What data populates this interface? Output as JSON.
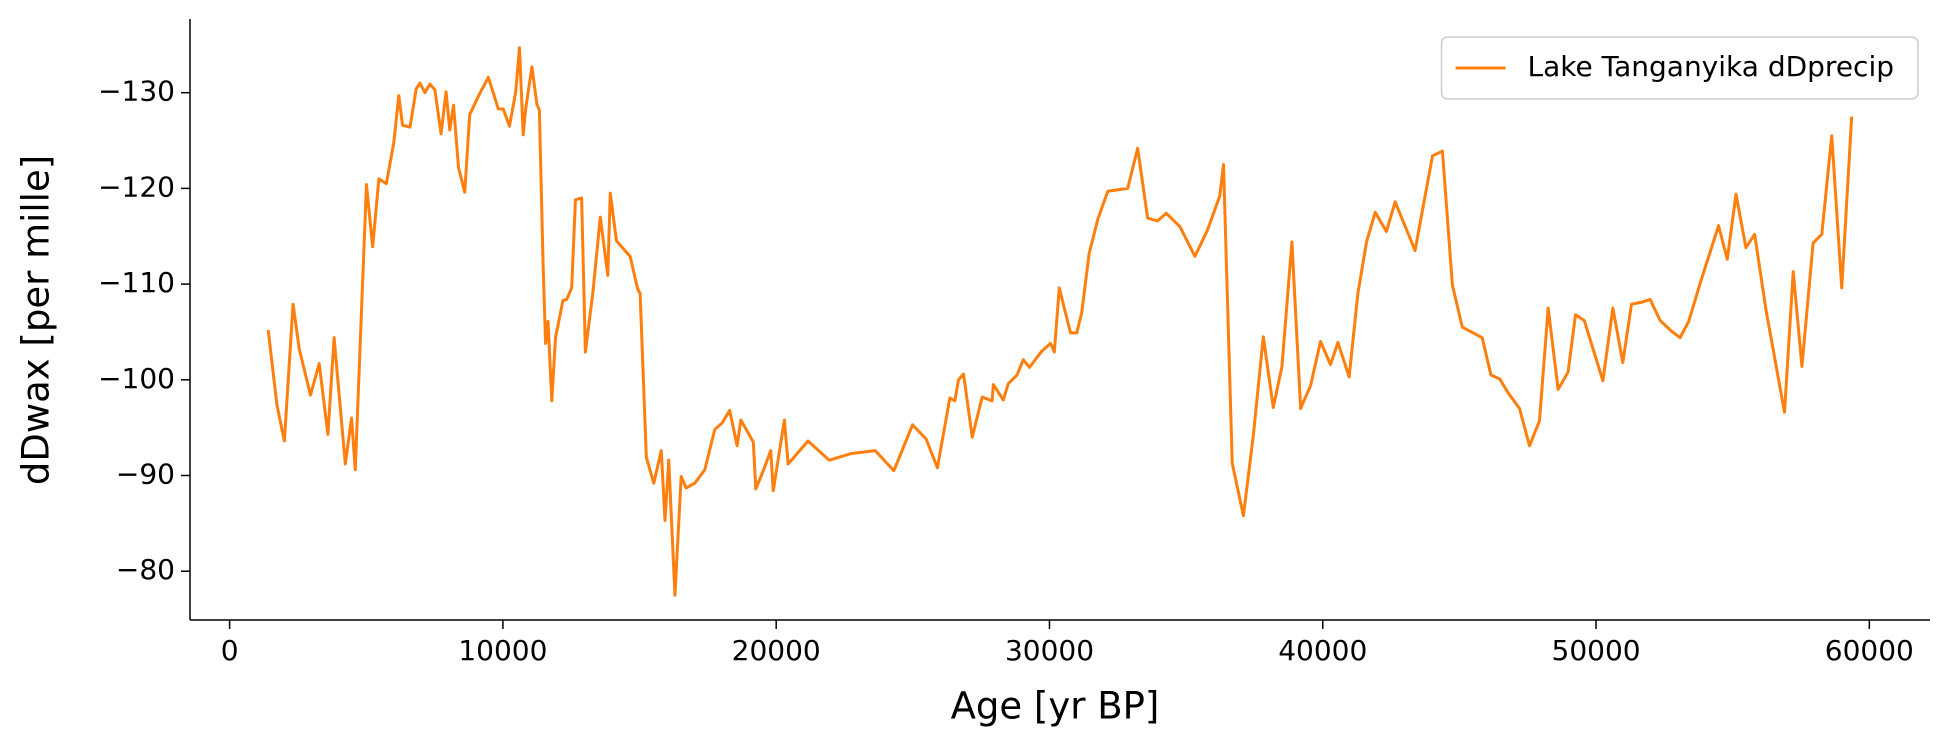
{
  "chart_data": {
    "type": "line",
    "xlabel": "Age [yr BP]",
    "ylabel": "dDwax [per mille]",
    "xlim": [
      -1450,
      62220
    ],
    "ylim": [
      -74.9,
      -137.7
    ],
    "xticks": [
      0,
      10000,
      20000,
      30000,
      40000,
      50000,
      60000
    ],
    "yticks": [
      {
        "value": -130,
        "label": "−130"
      },
      {
        "value": -120,
        "label": "−120"
      },
      {
        "value": -110,
        "label": "−110"
      },
      {
        "value": -100,
        "label": "−100"
      },
      {
        "value": -90,
        "label": "−90"
      },
      {
        "value": -80,
        "label": "−80"
      }
    ],
    "grid": false,
    "legend": "upper right",
    "series": [
      {
        "name": "Lake Tanganyika dDprecip",
        "color": "#ff7f0e",
        "x": [
          1411,
          1730,
          2003,
          2321,
          2549,
          2959,
          3277,
          3596,
          3823,
          4233,
          4461,
          4597,
          5007,
          5234,
          5462,
          5735,
          6008,
          6190,
          6327,
          6600,
          6828,
          6964,
          7146,
          7328,
          7510,
          7738,
          7920,
          8056,
          8193,
          8375,
          8603,
          8785,
          9149,
          9468,
          9832,
          10014,
          10241,
          10469,
          10606,
          10742,
          10833,
          11061,
          11243,
          11334,
          11470,
          11561,
          11652,
          11789,
          11925,
          12198,
          12335,
          12517,
          12654,
          12881,
          13018,
          13291,
          13564,
          13837,
          13928,
          14156,
          14656,
          14930,
          15021,
          15248,
          15521,
          15794,
          15931,
          16068,
          16295,
          16523,
          16705,
          17023,
          17387,
          17752,
          18025,
          18298,
          18571,
          18707,
          19162,
          19254,
          19527,
          19800,
          19891,
          20300,
          20437,
          21165,
          21939,
          22758,
          23623,
          24306,
          24989,
          25489,
          25899,
          26354,
          26536,
          26672,
          26855,
          27173,
          27537,
          27901,
          27947,
          28311,
          28493,
          28812,
          29040,
          29267,
          29722,
          30041,
          30177,
          30359,
          30769,
          30997,
          31179,
          31452,
          31771,
          32135,
          32863,
          33227,
          33591,
          33955,
          34274,
          34775,
          35321,
          35776,
          36231,
          36368,
          36687,
          37096,
          37460,
          37824,
          38189,
          38507,
          38871,
          39190,
          39554,
          39918,
          40282,
          40555,
          40965,
          41284,
          41602,
          41921,
          42330,
          42649,
          43377,
          44015,
          44379,
          44743,
          45107,
          45835,
          46154,
          46473,
          46791,
          47201,
          47565,
          47929,
          48248,
          48612,
          48976,
          49249,
          49568,
          50251,
          50615,
          50979,
          51297,
          51661,
          51980,
          52344,
          52754,
          53073,
          53391,
          53801,
          54483,
          54802,
          55121,
          55485,
          55804,
          56213,
          56896,
          57215,
          57533,
          57943,
          58261,
          58625,
          58990,
          59354
        ],
        "values": [
          -105.2,
          -97.4,
          -93.6,
          -107.9,
          -103.2,
          -98.4,
          -101.7,
          -94.3,
          -104.4,
          -91.2,
          -96.0,
          -90.6,
          -120.4,
          -113.9,
          -121.0,
          -120.5,
          -124.8,
          -129.7,
          -126.6,
          -126.4,
          -130.4,
          -131.0,
          -130.0,
          -130.9,
          -130.3,
          -125.7,
          -130.1,
          -126.1,
          -128.7,
          -122.2,
          -119.6,
          -127.7,
          -129.9,
          -131.6,
          -128.3,
          -128.3,
          -126.5,
          -130.1,
          -134.7,
          -125.6,
          -128.3,
          -132.7,
          -128.8,
          -128.2,
          -112.1,
          -103.8,
          -106.1,
          -97.8,
          -104.4,
          -108.3,
          -108.4,
          -109.6,
          -118.8,
          -119.0,
          -102.9,
          -109.1,
          -117.0,
          -110.9,
          -119.5,
          -114.5,
          -112.9,
          -109.5,
          -109.0,
          -91.9,
          -89.2,
          -92.6,
          -85.3,
          -91.6,
          -77.5,
          -89.9,
          -88.7,
          -89.2,
          -90.6,
          -94.8,
          -95.5,
          -96.8,
          -93.1,
          -95.8,
          -93.5,
          -88.6,
          -90.5,
          -92.6,
          -88.4,
          -95.8,
          -91.2,
          -93.6,
          -91.6,
          -92.3,
          -92.6,
          -90.5,
          -95.3,
          -93.8,
          -90.8,
          -98.1,
          -97.8,
          -100.0,
          -100.6,
          -94.0,
          -98.2,
          -97.8,
          -99.5,
          -97.9,
          -99.6,
          -100.5,
          -102.1,
          -101.3,
          -103.0,
          -103.8,
          -102.9,
          -109.6,
          -104.9,
          -104.9,
          -107.0,
          -113.2,
          -116.8,
          -119.7,
          -120.0,
          -124.2,
          -116.9,
          -116.6,
          -117.4,
          -116.0,
          -112.9,
          -115.6,
          -119.2,
          -122.5,
          -91.3,
          -85.8,
          -94.2,
          -104.5,
          -97.1,
          -101.4,
          -114.4,
          -97.0,
          -99.4,
          -104.0,
          -101.6,
          -103.9,
          -100.3,
          -109.0,
          -114.4,
          -117.5,
          -115.5,
          -118.6,
          -113.5,
          -123.4,
          -123.9,
          -109.9,
          -105.5,
          -104.4,
          -100.5,
          -100.1,
          -98.6,
          -97.0,
          -93.1,
          -95.7,
          -107.5,
          -99.0,
          -100.8,
          -106.8,
          -106.2,
          -99.9,
          -107.5,
          -101.8,
          -107.9,
          -108.1,
          -108.4,
          -106.2,
          -105.1,
          -104.4,
          -106.1,
          -110.0,
          -116.1,
          -112.6,
          -119.4,
          -113.8,
          -115.2,
          -107.4,
          -96.6,
          -111.3,
          -101.4,
          -114.3,
          -115.2,
          -125.5,
          -109.6,
          -127.5
        ]
      }
    ]
  }
}
